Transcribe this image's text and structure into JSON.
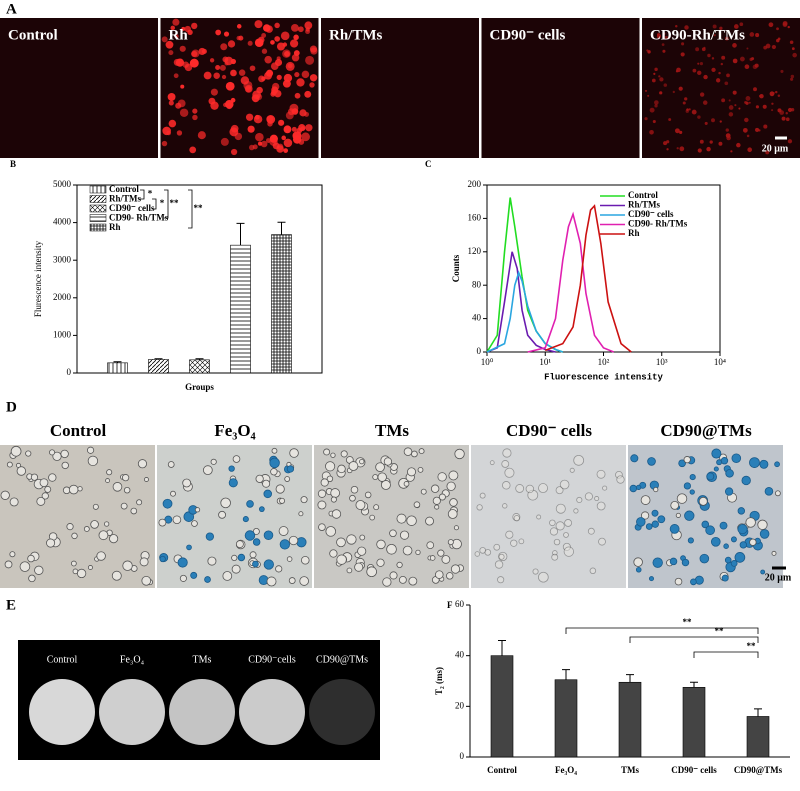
{
  "panel_a": {
    "letter": "A",
    "labels": [
      "Control",
      "Rh",
      "Rh/TMs",
      "CD90⁻ cells",
      "CD90-Rh/TMs"
    ],
    "scale_bar": "20 μm"
  },
  "panel_d": {
    "letter": "D",
    "labels": [
      "Control",
      "Fe₃O₄",
      "TMs",
      "CD90⁻ cells",
      "CD90@TMs"
    ],
    "scale_bar": "20 μm"
  },
  "panel_e": {
    "letter": "E",
    "labels": [
      "Control",
      "Fe₃O₄",
      "TMs",
      "CD90⁻cells",
      "CD90@TMs"
    ]
  },
  "chart_data": [
    {
      "type": "bar",
      "panel_label": "B",
      "xlabel": "Groups",
      "ylabel": "Flurescence intensity",
      "categories": [
        null,
        null,
        null,
        null,
        null
      ],
      "values": [
        270,
        360,
        350,
        3400,
        3680
      ],
      "errors": [
        30,
        20,
        30,
        580,
        330
      ],
      "legend": [
        "Control",
        "Rh/TMs",
        "CD90⁻ cells",
        "CD90- Rh/TMs",
        "Rh"
      ],
      "ylim": [
        0,
        5000
      ],
      "yticks": [
        0,
        1000,
        2000,
        3000,
        4000,
        5000
      ],
      "annotations": [
        "*",
        "*",
        "**",
        "**"
      ]
    },
    {
      "type": "line",
      "panel_label": "C",
      "xlabel": "Fluorescence intensity",
      "ylabel": "Counts",
      "xscale": "log",
      "xlim": [
        1,
        10000
      ],
      "xticks": [
        {
          "value": 1,
          "label": "10⁰"
        },
        {
          "value": 10,
          "label": "10¹"
        },
        {
          "value": 100,
          "label": "10²"
        },
        {
          "value": 1000,
          "label": "10³"
        },
        {
          "value": 10000,
          "label": "10⁴"
        }
      ],
      "ylim": [
        0,
        200
      ],
      "yticks": [
        0,
        40,
        80,
        120,
        160,
        200
      ],
      "series": [
        {
          "name": "Control",
          "color": "#22dd22",
          "x": [
            1,
            1.5,
            2,
            2.5,
            3,
            4,
            5,
            7,
            10,
            15,
            20
          ],
          "values": [
            0,
            20,
            120,
            185,
            150,
            90,
            50,
            25,
            10,
            3,
            0
          ]
        },
        {
          "name": "Rh/TMs",
          "color": "#6a1bb0",
          "x": [
            1,
            1.5,
            2,
            2.7,
            3.3,
            4,
            5,
            7,
            10,
            15
          ],
          "values": [
            0,
            5,
            60,
            120,
            100,
            50,
            20,
            8,
            3,
            0
          ]
        },
        {
          "name": "CD90⁻ cells",
          "color": "#2aa6e0",
          "x": [
            1,
            2,
            2.5,
            3,
            3.5,
            4,
            5,
            7,
            10,
            15,
            20
          ],
          "values": [
            0,
            10,
            40,
            80,
            95,
            85,
            55,
            25,
            10,
            3,
            0
          ]
        },
        {
          "name": "CD90- Rh/TMs",
          "color": "#e020b0",
          "x": [
            5,
            10,
            15,
            20,
            25,
            30,
            40,
            50,
            70,
            100,
            150
          ],
          "values": [
            0,
            5,
            40,
            110,
            150,
            165,
            130,
            70,
            20,
            5,
            0
          ]
        },
        {
          "name": "Rh",
          "color": "#cc1111",
          "x": [
            10,
            20,
            30,
            40,
            50,
            60,
            70,
            90,
            120,
            200,
            300
          ],
          "values": [
            2,
            10,
            30,
            80,
            140,
            170,
            175,
            130,
            60,
            10,
            0
          ]
        }
      ]
    },
    {
      "type": "bar",
      "panel_label": "F",
      "ylabel": "T₂ (ms)",
      "color": "#444444",
      "categories": [
        "Control",
        "Fe₃O₄",
        "TMs",
        "CD90⁻ cells",
        "CD90@TMs"
      ],
      "values": [
        40,
        30.5,
        29.5,
        27.5,
        16
      ],
      "errors": [
        6,
        4,
        3,
        2,
        3
      ],
      "ylim": [
        0,
        60
      ],
      "yticks": [
        0,
        20,
        40,
        60
      ],
      "annotations": [
        "**",
        "**",
        "**"
      ]
    }
  ]
}
